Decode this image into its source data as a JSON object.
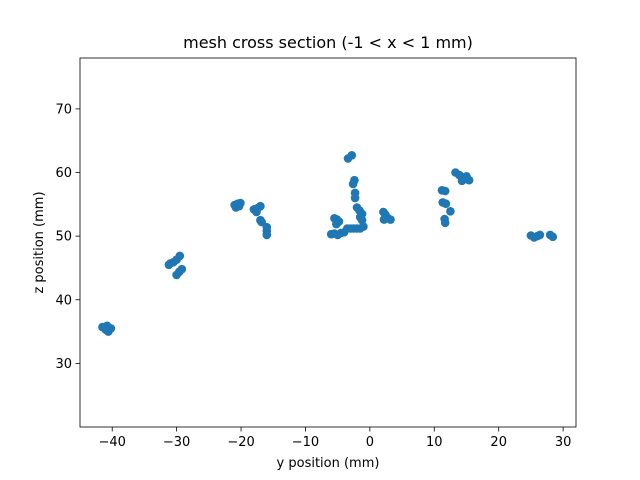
{
  "chart_data": {
    "type": "scatter",
    "title": "mesh cross section (-1 < x < 1 mm)",
    "xlabel": "y position (mm)",
    "ylabel": "z position (mm)",
    "xlim": [
      -45,
      32
    ],
    "ylim": [
      20,
      78
    ],
    "xticks": [
      -40,
      -30,
      -20,
      -10,
      0,
      10,
      20,
      30
    ],
    "yticks": [
      30,
      40,
      50,
      60,
      70
    ],
    "grid": false,
    "legend": "none",
    "marker_color": "#1f77b4",
    "series": [
      {
        "points": [
          [
            -41.5,
            35.7
          ],
          [
            -41.0,
            35.3
          ],
          [
            -40.6,
            35.0
          ],
          [
            -40.2,
            35.5
          ],
          [
            -40.8,
            35.9
          ],
          [
            -31.0,
            45.7
          ],
          [
            -30.5,
            45.9
          ],
          [
            -30.0,
            46.3
          ],
          [
            -29.5,
            46.9
          ],
          [
            -31.2,
            45.5
          ],
          [
            -30.0,
            43.9
          ],
          [
            -29.6,
            44.4
          ],
          [
            -29.2,
            44.8
          ],
          [
            -21.0,
            54.9
          ],
          [
            -20.5,
            55.1
          ],
          [
            -20.1,
            55.2
          ],
          [
            -20.8,
            54.5
          ],
          [
            -20.3,
            54.7
          ],
          [
            -18.0,
            54.2
          ],
          [
            -17.4,
            54.4
          ],
          [
            -17.0,
            54.7
          ],
          [
            -17.6,
            53.8
          ],
          [
            -17.0,
            52.5
          ],
          [
            -16.8,
            52.2
          ],
          [
            -16.0,
            51.4
          ],
          [
            -16.0,
            50.8
          ],
          [
            -16.0,
            50.2
          ],
          [
            -6.0,
            50.3
          ],
          [
            -5.5,
            50.4
          ],
          [
            -5.0,
            50.2
          ],
          [
            -4.5,
            50.5
          ],
          [
            -4.0,
            50.6
          ],
          [
            -5.5,
            52.8
          ],
          [
            -5.1,
            52.6
          ],
          [
            -4.8,
            52.3
          ],
          [
            -5.2,
            51.9
          ],
          [
            -3.5,
            51.2
          ],
          [
            -3.0,
            51.2
          ],
          [
            -2.5,
            51.2
          ],
          [
            -2.0,
            51.2
          ],
          [
            -1.5,
            51.2
          ],
          [
            -3.4,
            62.2
          ],
          [
            -2.8,
            62.7
          ],
          [
            -2.4,
            58.8
          ],
          [
            -2.6,
            58.2
          ],
          [
            -2.3,
            56.8
          ],
          [
            -2.3,
            56.0
          ],
          [
            -2.0,
            54.5
          ],
          [
            -1.6,
            54.0
          ],
          [
            -1.2,
            53.5
          ],
          [
            -1.5,
            53.0
          ],
          [
            -1.2,
            52.5
          ],
          [
            -1.0,
            51.5
          ],
          [
            2.1,
            53.8
          ],
          [
            2.4,
            53.4
          ],
          [
            2.7,
            52.9
          ],
          [
            3.2,
            52.6
          ],
          [
            2.2,
            52.6
          ],
          [
            11.2,
            57.2
          ],
          [
            11.7,
            57.1
          ],
          [
            11.3,
            55.3
          ],
          [
            11.8,
            55.1
          ],
          [
            12.5,
            53.9
          ],
          [
            11.6,
            52.7
          ],
          [
            11.7,
            52.1
          ],
          [
            13.3,
            60.0
          ],
          [
            13.9,
            59.6
          ],
          [
            14.4,
            59.2
          ],
          [
            14.9,
            59.0
          ],
          [
            15.4,
            58.8
          ],
          [
            14.3,
            58.7
          ],
          [
            15.0,
            59.4
          ],
          [
            25.0,
            50.1
          ],
          [
            25.5,
            49.8
          ],
          [
            26.0,
            50.0
          ],
          [
            26.4,
            50.2
          ],
          [
            28.0,
            50.2
          ],
          [
            28.4,
            49.9
          ]
        ]
      }
    ]
  }
}
